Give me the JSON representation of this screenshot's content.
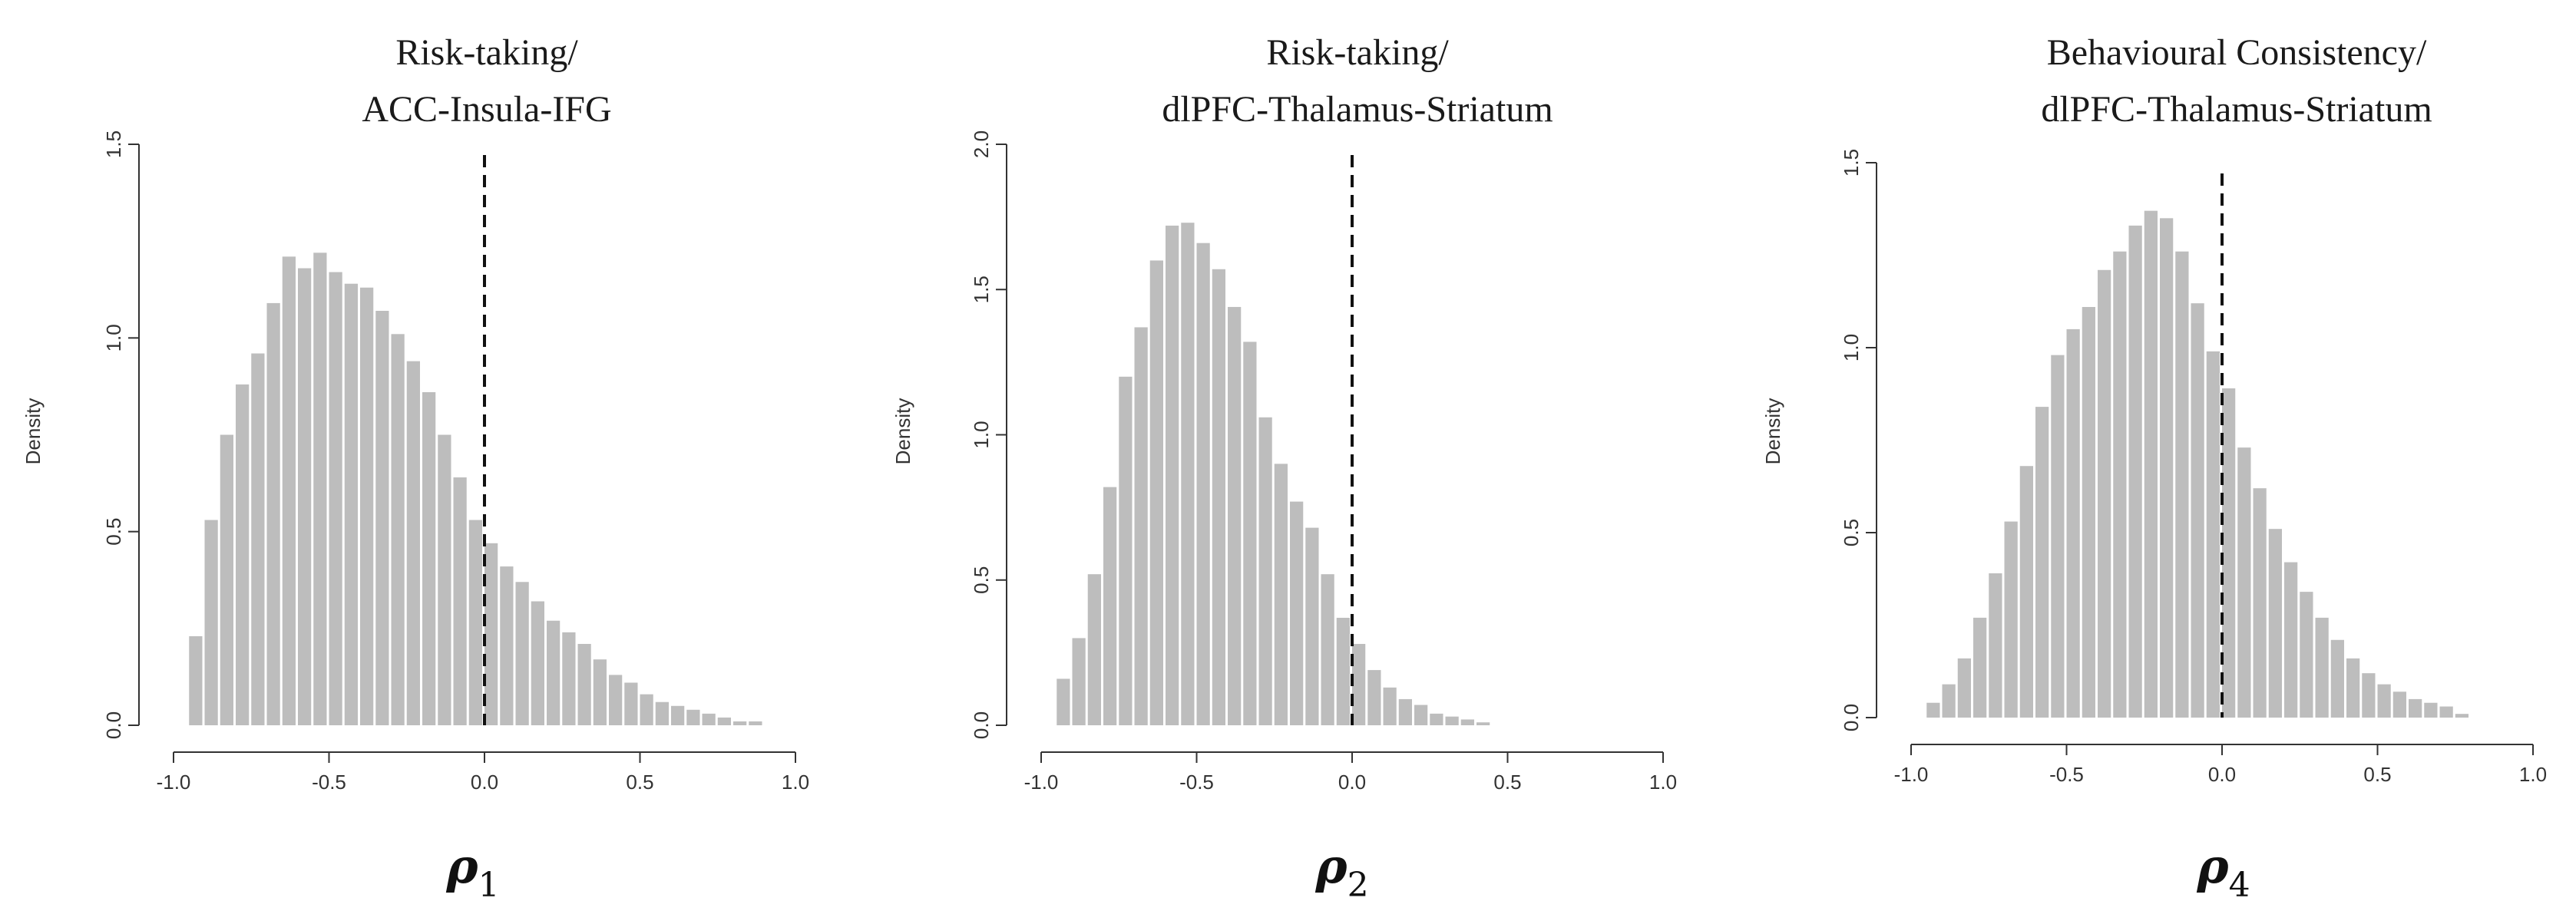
{
  "chart_data": [
    {
      "type": "histogram",
      "title_lines": [
        "Risk-taking/",
        "ACC-Insula-IFG"
      ],
      "xlabel": "ρ",
      "xlabel_sub": "1",
      "ylabel": "Density",
      "xlim": [
        -1.0,
        1.0
      ],
      "ylim": [
        0,
        1.5
      ],
      "xticks": [
        "-1.0",
        "-0.5",
        "0.0",
        "0.5",
        "1.0"
      ],
      "yticks": [
        "0.0",
        "0.5",
        "1.0",
        "1.5"
      ],
      "reference_line_x": 0.0,
      "bin_width": 0.05,
      "bin_starts": [
        -0.95,
        -0.9,
        -0.85,
        -0.8,
        -0.75,
        -0.7,
        -0.65,
        -0.6,
        -0.55,
        -0.5,
        -0.45,
        -0.4,
        -0.35,
        -0.3,
        -0.25,
        -0.2,
        -0.15,
        -0.1,
        -0.05,
        0.0,
        0.05,
        0.1,
        0.15,
        0.2,
        0.25,
        0.3,
        0.35,
        0.4,
        0.45,
        0.5,
        0.55,
        0.6,
        0.65,
        0.7,
        0.75,
        0.8,
        0.85
      ],
      "values": [
        0.23,
        0.53,
        0.75,
        0.88,
        0.96,
        1.09,
        1.21,
        1.18,
        1.22,
        1.17,
        1.14,
        1.13,
        1.07,
        1.01,
        0.94,
        0.86,
        0.75,
        0.64,
        0.53,
        0.47,
        0.41,
        0.37,
        0.32,
        0.27,
        0.24,
        0.21,
        0.17,
        0.13,
        0.11,
        0.08,
        0.06,
        0.05,
        0.04,
        0.03,
        0.02,
        0.01,
        0.01
      ],
      "bar_color": "#bdbdbd"
    },
    {
      "type": "histogram",
      "title_lines": [
        "Risk-taking/",
        "dlPFC-Thalamus-Striatum"
      ],
      "xlabel": "ρ",
      "xlabel_sub": "2",
      "ylabel": "Density",
      "xlim": [
        -1.0,
        1.0
      ],
      "ylim": [
        0,
        2.0
      ],
      "xticks": [
        "-1.0",
        "-0.5",
        "0.0",
        "0.5",
        "1.0"
      ],
      "yticks": [
        "0.0",
        "0.5",
        "1.0",
        "1.5",
        "2.0"
      ],
      "reference_line_x": 0.0,
      "bin_width": 0.05,
      "bin_starts": [
        -0.95,
        -0.9,
        -0.85,
        -0.8,
        -0.75,
        -0.7,
        -0.65,
        -0.6,
        -0.55,
        -0.5,
        -0.45,
        -0.4,
        -0.35,
        -0.3,
        -0.25,
        -0.2,
        -0.15,
        -0.1,
        -0.05,
        0.0,
        0.05,
        0.1,
        0.15,
        0.2,
        0.25,
        0.3,
        0.35,
        0.4
      ],
      "values": [
        0.16,
        0.3,
        0.52,
        0.82,
        1.2,
        1.37,
        1.6,
        1.72,
        1.73,
        1.66,
        1.57,
        1.44,
        1.32,
        1.06,
        0.9,
        0.77,
        0.68,
        0.52,
        0.37,
        0.28,
        0.19,
        0.13,
        0.09,
        0.07,
        0.04,
        0.03,
        0.02,
        0.01
      ],
      "bar_color": "#bdbdbd"
    },
    {
      "type": "histogram",
      "title_lines": [
        "Behavioural Consistency/",
        "dlPFC-Thalamus-Striatum"
      ],
      "xlabel": "ρ",
      "xlabel_sub": "4",
      "ylabel": "Density",
      "xlim": [
        -1.0,
        1.0
      ],
      "ylim": [
        0,
        1.5
      ],
      "xticks": [
        "-1.0",
        "-0.5",
        "0.0",
        "0.5",
        "1.0"
      ],
      "yticks": [
        "0.0",
        "0.5",
        "1.0",
        "1.5"
      ],
      "reference_line_x": 0.0,
      "bin_width": 0.05,
      "bin_starts": [
        -0.95,
        -0.9,
        -0.85,
        -0.8,
        -0.75,
        -0.7,
        -0.65,
        -0.6,
        -0.55,
        -0.5,
        -0.45,
        -0.4,
        -0.35,
        -0.3,
        -0.25,
        -0.2,
        -0.15,
        -0.1,
        -0.05,
        0.0,
        0.05,
        0.1,
        0.15,
        0.2,
        0.25,
        0.3,
        0.35,
        0.4,
        0.45,
        0.5,
        0.55,
        0.6,
        0.65,
        0.7,
        0.75
      ],
      "values": [
        0.04,
        0.09,
        0.16,
        0.27,
        0.39,
        0.53,
        0.68,
        0.84,
        0.98,
        1.05,
        1.11,
        1.21,
        1.26,
        1.33,
        1.37,
        1.35,
        1.26,
        1.12,
        0.99,
        0.89,
        0.73,
        0.62,
        0.51,
        0.42,
        0.34,
        0.27,
        0.21,
        0.16,
        0.12,
        0.09,
        0.07,
        0.05,
        0.04,
        0.03,
        0.01
      ],
      "bar_color": "#bdbdbd"
    }
  ]
}
